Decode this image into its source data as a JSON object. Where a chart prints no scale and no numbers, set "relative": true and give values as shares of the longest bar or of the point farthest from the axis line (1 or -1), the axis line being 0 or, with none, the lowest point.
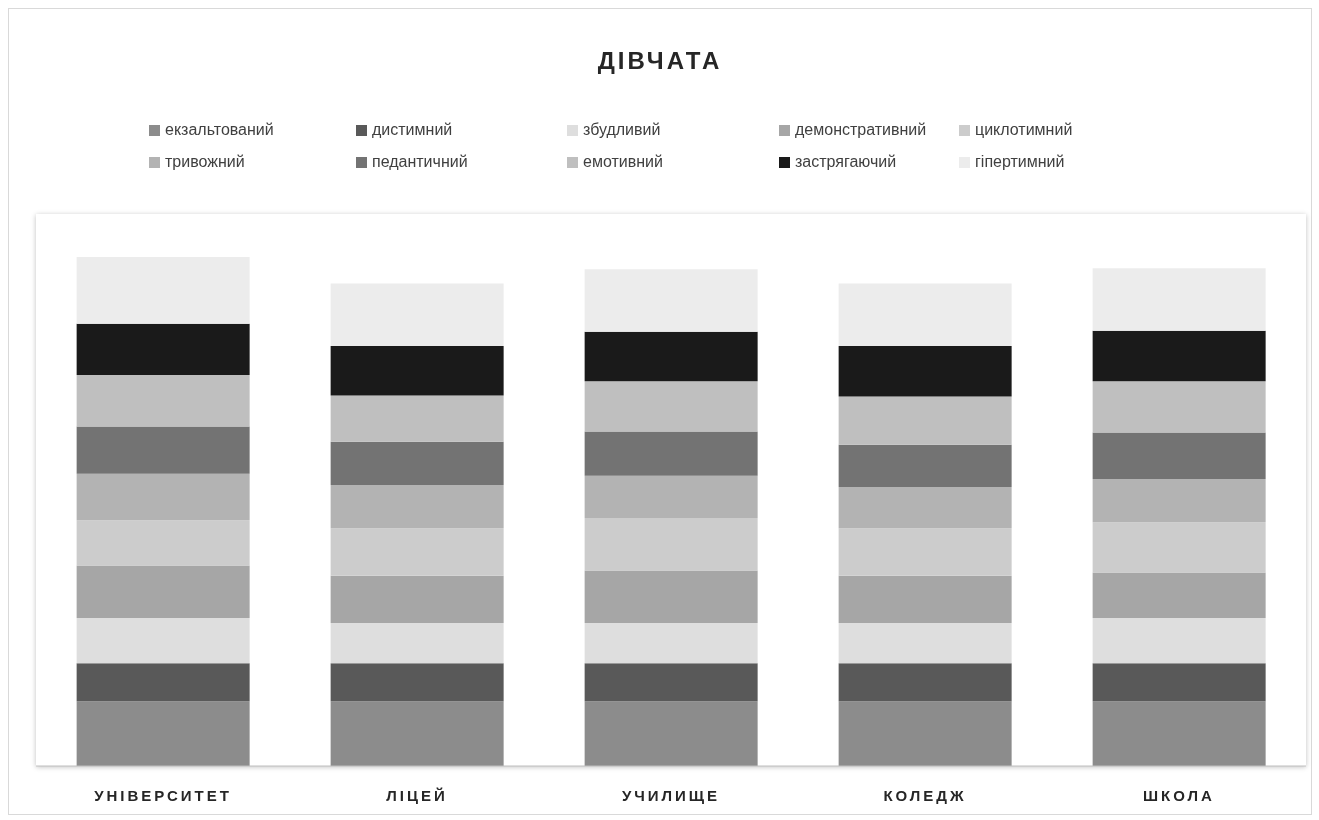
{
  "chart_data": {
    "type": "bar",
    "title": "ДІВЧАТА",
    "stacked": true,
    "relative": true,
    "legend": "top",
    "grid": false,
    "categories": [
      "УНІВЕРСИТЕТ",
      "ЛІЦЕЙ",
      "УЧИЛИЩЕ",
      "КОЛЕДЖ",
      "ШКОЛА"
    ],
    "series": [
      {
        "name": "екзальтований",
        "color": "#8c8c8c",
        "values": [
          0.127,
          0.127,
          0.127,
          0.127,
          0.127
        ]
      },
      {
        "name": "дистимний",
        "color": "#595959",
        "values": [
          0.075,
          0.075,
          0.075,
          0.075,
          0.075
        ]
      },
      {
        "name": "збудливий",
        "color": "#dedede",
        "values": [
          0.089,
          0.079,
          0.079,
          0.079,
          0.089
        ]
      },
      {
        "name": "демонстративний",
        "color": "#a6a6a6",
        "values": [
          0.103,
          0.093,
          0.103,
          0.093,
          0.089
        ]
      },
      {
        "name": "циклотимний",
        "color": "#cccccc",
        "values": [
          0.089,
          0.093,
          0.103,
          0.093,
          0.099
        ]
      },
      {
        "name": "тривожний",
        "color": "#b3b3b3",
        "values": [
          0.091,
          0.085,
          0.083,
          0.081,
          0.085
        ]
      },
      {
        "name": "педантичний",
        "color": "#737373",
        "values": [
          0.093,
          0.085,
          0.087,
          0.083,
          0.091
        ]
      },
      {
        "name": "емотивний",
        "color": "#bfbfbf",
        "values": [
          0.101,
          0.091,
          0.099,
          0.095,
          0.101
        ]
      },
      {
        "name": "застрягаючий",
        "color": "#1a1a1a",
        "values": [
          0.101,
          0.097,
          0.097,
          0.099,
          0.099
        ]
      },
      {
        "name": "гіпертимний",
        "color": "#ececec",
        "values": [
          0.131,
          0.123,
          0.123,
          0.123,
          0.123
        ]
      }
    ]
  }
}
